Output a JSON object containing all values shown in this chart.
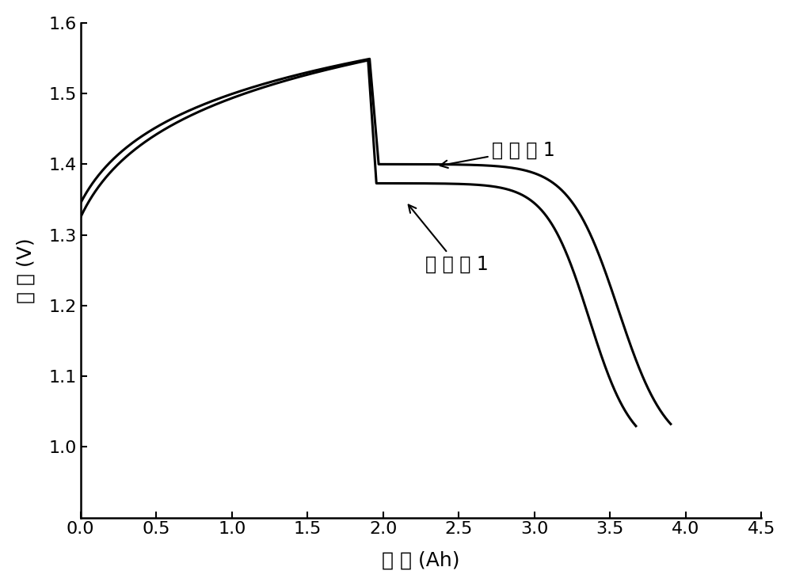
{
  "title": "",
  "xlabel": "容 量 (Ah)",
  "ylabel": "电 压 (V)",
  "xlim": [
    0,
    4.5
  ],
  "ylim": [
    0.9,
    1.6
  ],
  "yticks": [
    1.0,
    1.1,
    1.2,
    1.3,
    1.4,
    1.5,
    1.6
  ],
  "xticks": [
    0.0,
    0.5,
    1.0,
    1.5,
    2.0,
    2.5,
    3.0,
    3.5,
    4.0,
    4.5
  ],
  "line_color": "#000000",
  "line_width": 2.2,
  "annotation1_text": "实 施 例 1",
  "annotation2_text": "比 较 例 1",
  "figsize": [
    10.0,
    7.4
  ],
  "dpi": 100,
  "background_color": "#ffffff",
  "font_size": 18,
  "tick_font_size": 16,
  "curve1_x0": 0.0,
  "curve1_x1": 1.91,
  "curve1_x2": 1.97,
  "curve1_x3": 3.9,
  "curve1_v0": 1.345,
  "curve1_v1": 1.549,
  "curve1_v2": 1.4,
  "curve1_v3": 0.99,
  "curve2_x0": 0.0,
  "curve2_x1": 1.9,
  "curve2_x2": 1.955,
  "curve2_x3": 3.67,
  "curve2_v0": 1.325,
  "curve2_v1": 1.547,
  "curve2_v2": 1.373,
  "curve2_v3": 0.99
}
